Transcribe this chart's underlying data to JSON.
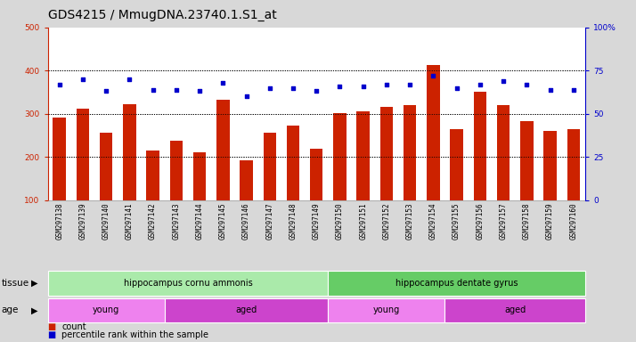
{
  "title": "GDS4215 / MmugDNA.23740.1.S1_at",
  "samples": [
    "GSM297138",
    "GSM297139",
    "GSM297140",
    "GSM297141",
    "GSM297142",
    "GSM297143",
    "GSM297144",
    "GSM297145",
    "GSM297146",
    "GSM297147",
    "GSM297148",
    "GSM297149",
    "GSM297150",
    "GSM297151",
    "GSM297152",
    "GSM297153",
    "GSM297154",
    "GSM297155",
    "GSM297156",
    "GSM297157",
    "GSM297158",
    "GSM297159",
    "GSM297160"
  ],
  "counts": [
    291,
    311,
    255,
    322,
    215,
    238,
    211,
    332,
    193,
    255,
    272,
    219,
    302,
    306,
    315,
    320,
    412,
    265,
    350,
    320,
    282,
    260,
    264
  ],
  "percentiles": [
    67,
    70,
    63,
    70,
    64,
    64,
    63,
    68,
    60,
    65,
    65,
    63,
    66,
    66,
    67,
    67,
    72,
    65,
    67,
    69,
    67,
    64,
    64
  ],
  "bar_color": "#cc2200",
  "dot_color": "#0000cc",
  "ylim_left": [
    100,
    500
  ],
  "ylim_right": [
    0,
    100
  ],
  "yticks_left": [
    100,
    200,
    300,
    400,
    500
  ],
  "yticks_right": [
    0,
    25,
    50,
    75,
    100
  ],
  "tissue_groups": [
    {
      "label": "hippocampus cornu ammonis",
      "start": 0,
      "end": 11,
      "color": "#aaeaaa"
    },
    {
      "label": "hippocampus dentate gyrus",
      "start": 12,
      "end": 22,
      "color": "#66cc66"
    }
  ],
  "age_groups": [
    {
      "label": "young",
      "start": 0,
      "end": 4,
      "color": "#ee82ee"
    },
    {
      "label": "aged",
      "start": 5,
      "end": 11,
      "color": "#cc44cc"
    },
    {
      "label": "young",
      "start": 12,
      "end": 16,
      "color": "#ee82ee"
    },
    {
      "label": "aged",
      "start": 17,
      "end": 22,
      "color": "#cc44cc"
    }
  ],
  "tissue_label": "tissue",
  "age_label": "age",
  "legend_count_label": "count",
  "legend_pct_label": "percentile rank within the sample",
  "bg_color": "#d8d8d8",
  "plot_bg_color": "#ffffff",
  "xtick_bg_color": "#cccccc",
  "title_fontsize": 10,
  "tick_fontsize": 6.5,
  "xtick_fontsize": 5.5,
  "band_fontsize": 7,
  "legend_fontsize": 7
}
